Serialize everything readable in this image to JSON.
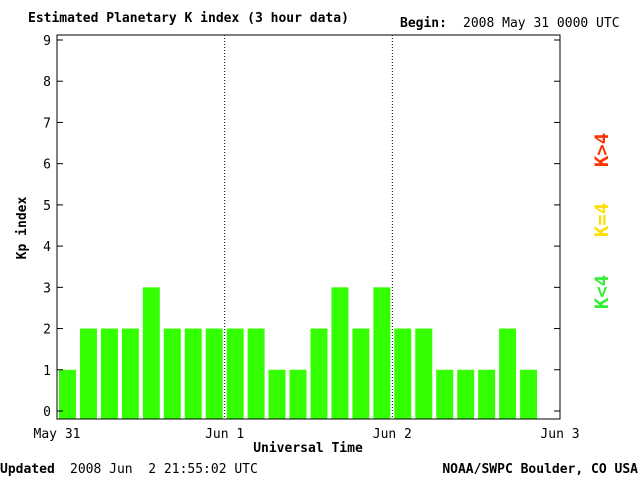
{
  "header": {
    "title": "Estimated Planetary K index (3 hour data)",
    "begin_label": "Begin:",
    "begin_value": "2008 May 31 0000 UTC"
  },
  "footer": {
    "updated_label": "Updated",
    "updated_value": "2008 Jun  2 21:55:02 UTC",
    "source": "NOAA/SWPC Boulder, CO USA"
  },
  "legend": [
    {
      "label": "K>4",
      "color": "#ff3300"
    },
    {
      "label": "K=4",
      "color": "#ffdd00"
    },
    {
      "label": "K<4",
      "color": "#33ee33"
    }
  ],
  "colors": {
    "bar_below_4": "#33ff00",
    "bar_equal_4": "#ffdd00",
    "bar_above_4": "#ff3300",
    "axes": "#000000"
  },
  "chart_data": {
    "type": "bar",
    "title": "Estimated Planetary K index (3 hour data)",
    "xlabel": "Universal Time",
    "ylabel": "Kp index",
    "ylim": [
      0,
      9
    ],
    "yticks": [
      "0",
      "1",
      "2",
      "3",
      "4",
      "5",
      "6",
      "7",
      "8",
      "9"
    ],
    "xticks": [
      "May 31",
      "Jun 1",
      "Jun 2",
      "Jun 3"
    ],
    "x_range": [
      "2008-05-31 00:00",
      "2008-06-03 00:00"
    ],
    "interval_hours": 3,
    "day_separators": [
      "Jun 1",
      "Jun 2"
    ],
    "grid": false,
    "values": [
      1,
      2,
      2,
      2,
      3,
      2,
      2,
      2,
      2,
      2,
      1,
      1,
      2,
      3,
      2,
      3,
      2,
      2,
      1,
      1,
      1,
      2,
      1
    ]
  }
}
